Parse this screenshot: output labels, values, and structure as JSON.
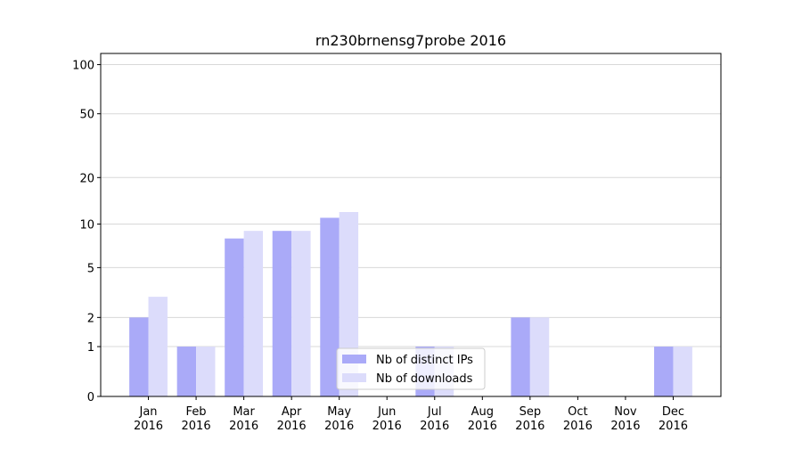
{
  "chart_data": {
    "type": "bar",
    "title": "rn230brnensg7probe 2016",
    "categories": [
      "Jan\n2016",
      "Feb\n2016",
      "Mar\n2016",
      "Apr\n2016",
      "May\n2016",
      "Jun\n2016",
      "Jul\n2016",
      "Aug\n2016",
      "Sep\n2016",
      "Oct\n2016",
      "Nov\n2016",
      "Dec\n2016"
    ],
    "series": [
      {
        "name": "Nb of distinct IPs",
        "color": "#aaaaf8",
        "values": [
          2,
          1,
          8,
          9,
          11,
          0,
          1,
          0,
          2,
          0,
          0,
          1
        ]
      },
      {
        "name": "Nb of downloads",
        "color": "#dcdcfb",
        "values": [
          3,
          1,
          9,
          9,
          12,
          0,
          1,
          0,
          2,
          0,
          0,
          1
        ]
      }
    ],
    "yscale": "log1p",
    "ylim": [
      0,
      117
    ],
    "yticks": [
      0,
      1,
      2,
      5,
      10,
      20,
      50,
      100
    ],
    "grid": true,
    "legend": "lower center"
  }
}
